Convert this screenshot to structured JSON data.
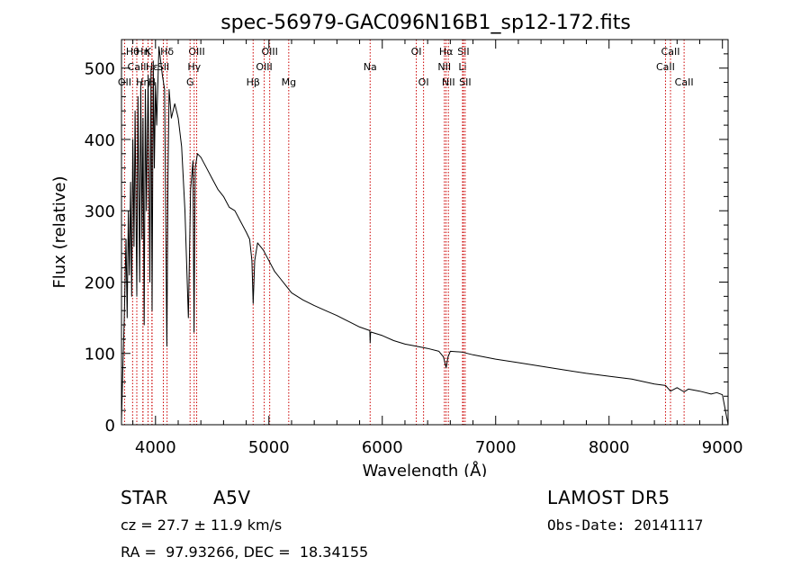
{
  "chart_data": {
    "type": "line",
    "title": "spec-56979-GAC096N16B1_sp12-172.fits",
    "xlabel": "Wavelength (Å)",
    "ylabel": "Flux (relative)",
    "xlim": [
      3700,
      9050
    ],
    "ylim": [
      0,
      540
    ],
    "xticks": [
      "4000",
      "5000",
      "6000",
      "7000",
      "8000",
      "9000"
    ],
    "yticks": [
      "0",
      "100",
      "200",
      "300",
      "400",
      "500"
    ],
    "grid": false,
    "series": [
      {
        "x": [
          3700,
          3710,
          3725,
          3740,
          3750,
          3760,
          3770,
          3780,
          3790,
          3800,
          3810,
          3820,
          3835,
          3845,
          3860,
          3870,
          3880,
          3890,
          3900,
          3910,
          3920,
          3935,
          3950,
          3960,
          3970,
          3980,
          3990,
          4000,
          4010,
          4030,
          4060,
          4080,
          4100,
          4110,
          4120,
          4140,
          4170,
          4200,
          4230,
          4260,
          4290,
          4310,
          4330,
          4340,
          4350,
          4370,
          4400,
          4450,
          4500,
          4550,
          4600,
          4650,
          4700,
          4750,
          4800,
          4830,
          4850,
          4861,
          4875,
          4900,
          4950,
          5000,
          5050,
          5100,
          5150,
          5200,
          5300,
          5400,
          5500,
          5600,
          5700,
          5800,
          5890,
          5893,
          5896,
          5900,
          6000,
          6100,
          6200,
          6300,
          6400,
          6500,
          6540,
          6563,
          6580,
          6600,
          6700,
          6800,
          7000,
          7200,
          7400,
          7600,
          7800,
          8000,
          8200,
          8400,
          8498,
          8542,
          8600,
          8662,
          8700,
          8800,
          8900,
          8950,
          9000,
          9050
        ],
        "y": [
          5,
          70,
          150,
          260,
          150,
          300,
          210,
          340,
          180,
          400,
          250,
          440,
          180,
          460,
          200,
          480,
          260,
          430,
          140,
          470,
          300,
          490,
          200,
          500,
          160,
          510,
          360,
          480,
          420,
          530,
          490,
          470,
          110,
          350,
          470,
          430,
          450,
          430,
          390,
          300,
          150,
          330,
          370,
          130,
          360,
          380,
          375,
          360,
          345,
          330,
          320,
          305,
          300,
          285,
          270,
          260,
          230,
          170,
          230,
          255,
          245,
          230,
          215,
          205,
          195,
          185,
          175,
          167,
          160,
          153,
          145,
          137,
          132,
          115,
          128,
          130,
          125,
          118,
          113,
          110,
          107,
          103,
          95,
          80,
          95,
          103,
          102,
          98,
          92,
          87,
          82,
          77,
          72,
          68,
          64,
          57,
          55,
          47,
          52,
          46,
          50,
          47,
          43,
          45,
          42,
          0
        ]
      }
    ],
    "line_markers": [
      {
        "wl": 3798,
        "row": 0,
        "label": "Hθ"
      },
      {
        "wl": 3835,
        "row": 1,
        "label": "CaII"
      },
      {
        "wl": 3727,
        "row": 2,
        "label": "OII"
      },
      {
        "wl": 3889,
        "row": 0,
        "label": "Hη"
      },
      {
        "wl": 3934,
        "row": 0,
        "label": "K"
      },
      {
        "wl": 3889,
        "row": 2,
        "label": "Hη"
      },
      {
        "wl": 3970,
        "row": 1,
        "label": "Hε"
      },
      {
        "wl": 3968,
        "row": 2,
        "label": "H"
      },
      {
        "wl": 4102,
        "row": 0,
        "label": "Hδ"
      },
      {
        "wl": 4069,
        "row": 1,
        "label": "SII"
      },
      {
        "wl": 4363,
        "row": 0,
        "label": "OIII"
      },
      {
        "wl": 4341,
        "row": 1,
        "label": "Hγ"
      },
      {
        "wl": 4305,
        "row": 2,
        "label": "G"
      },
      {
        "wl": 4861,
        "row": 2,
        "label": "Hβ"
      },
      {
        "wl": 4959,
        "row": 1,
        "label": "OIII"
      },
      {
        "wl": 5007,
        "row": 0,
        "label": "OIII"
      },
      {
        "wl": 5175,
        "row": 2,
        "label": "Mg"
      },
      {
        "wl": 5893,
        "row": 1,
        "label": "Na"
      },
      {
        "wl": 6300,
        "row": 0,
        "label": "OI"
      },
      {
        "wl": 6364,
        "row": 2,
        "label": "OI"
      },
      {
        "wl": 6563,
        "row": 0,
        "label": "Hα"
      },
      {
        "wl": 6548,
        "row": 1,
        "label": "NII"
      },
      {
        "wl": 6583,
        "row": 2,
        "label": "NII"
      },
      {
        "wl": 6716,
        "row": 0,
        "label": "SII"
      },
      {
        "wl": 6708,
        "row": 1,
        "label": "Li"
      },
      {
        "wl": 6731,
        "row": 2,
        "label": "SII"
      },
      {
        "wl": 8542,
        "row": 0,
        "label": "CaII"
      },
      {
        "wl": 8498,
        "row": 1,
        "label": "CaII"
      },
      {
        "wl": 8662,
        "row": 2,
        "label": "CaII"
      }
    ]
  },
  "info": {
    "object_class": "STAR",
    "subclass": "A5V",
    "survey": "LAMOST DR5",
    "redshift": "cz = 27.7 ± 11.9 km/s",
    "obs_date": "Obs-Date: 20141117",
    "coords": "RA =  97.93266, DEC =  18.34155"
  },
  "colors": {
    "marker": "#cc0000",
    "spectrum": "#000000",
    "axes": "#000000"
  }
}
